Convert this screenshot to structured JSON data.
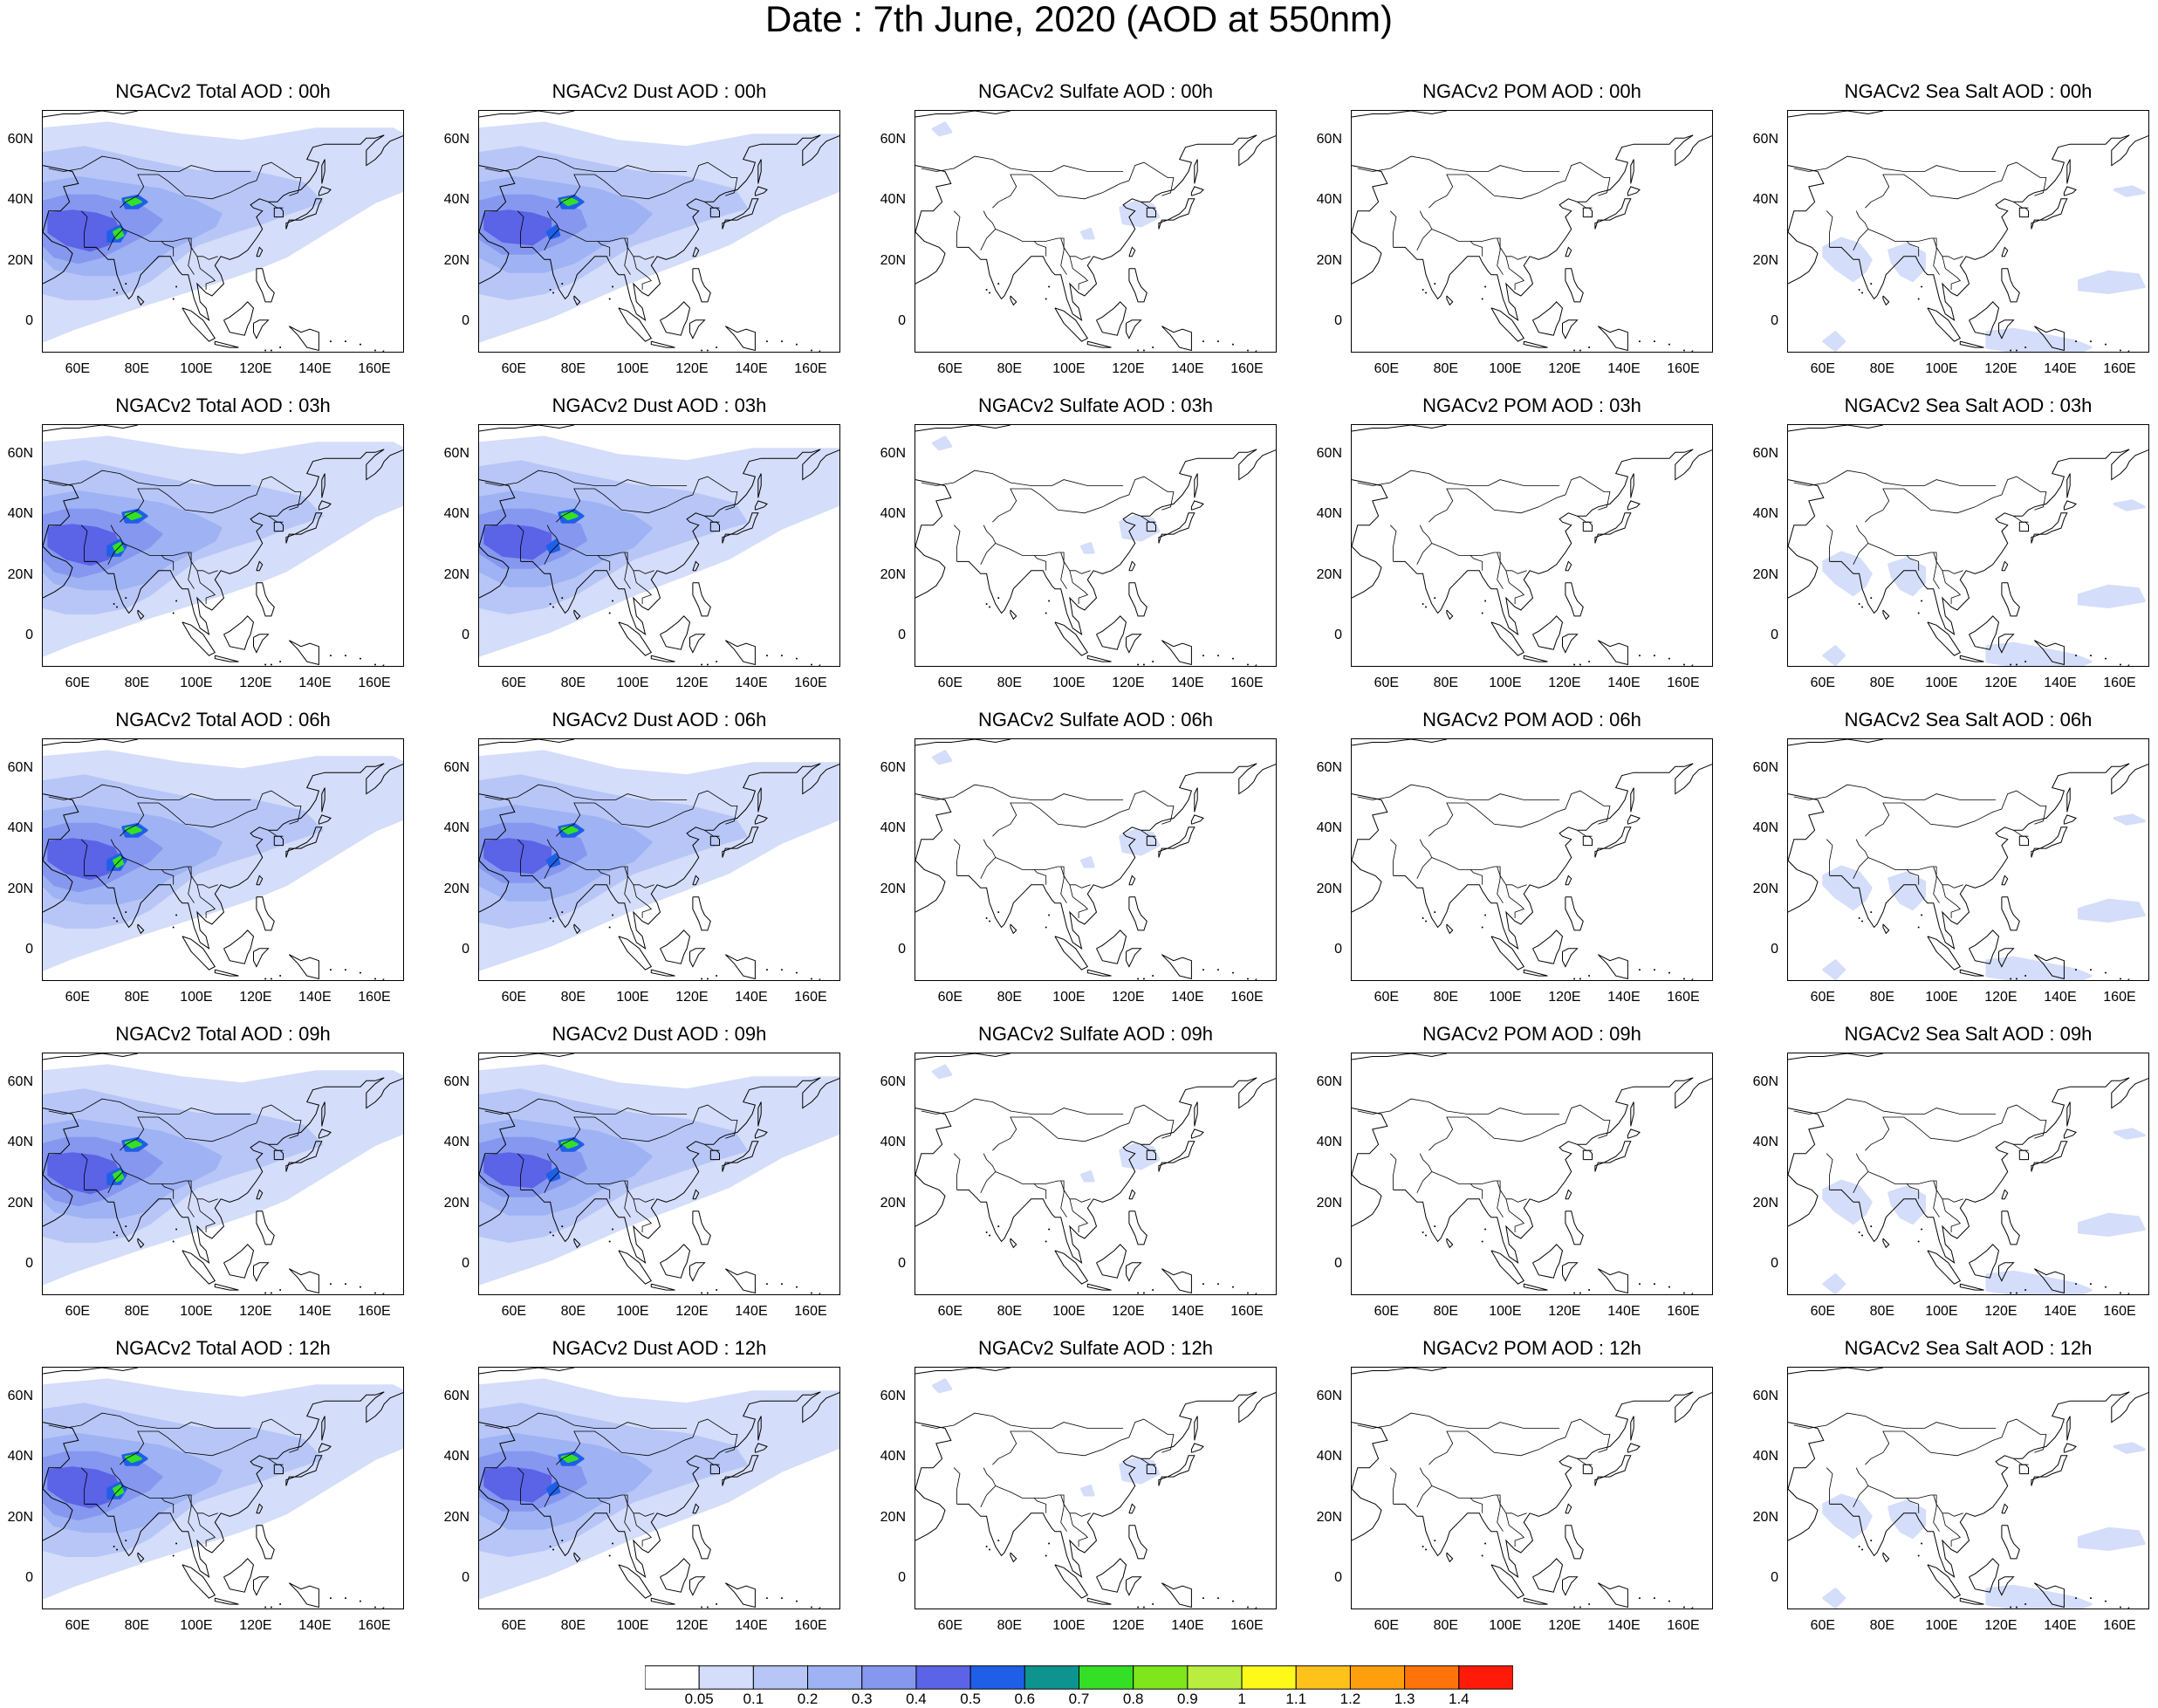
{
  "figure": {
    "title": "Date : 7th June, 2020 (AOD at 550nm)"
  },
  "axes": {
    "x_ticks": [
      "60E",
      "80E",
      "100E",
      "120E",
      "140E",
      "160E"
    ],
    "x_tick_values": [
      60,
      80,
      100,
      120,
      140,
      160
    ],
    "y_ticks": [
      "60N",
      "40N",
      "20N",
      "0"
    ],
    "y_tick_values": [
      60,
      40,
      20,
      0
    ],
    "lon_range": [
      48,
      170
    ],
    "lat_range": [
      -10,
      70
    ]
  },
  "panel_titles": [
    [
      "NGACv2 Total AOD : 00h",
      "NGACv2 Dust AOD : 00h",
      "NGACv2 Sulfate AOD : 00h",
      "NGACv2 POM AOD : 00h",
      "NGACv2 Sea Salt AOD : 00h"
    ],
    [
      "NGACv2 Total AOD : 03h",
      "NGACv2 Dust AOD : 03h",
      "NGACv2 Sulfate AOD : 03h",
      "NGACv2 POM AOD : 03h",
      "NGACv2 Sea Salt AOD : 03h"
    ],
    [
      "NGACv2 Total AOD : 06h",
      "NGACv2 Dust AOD : 06h",
      "NGACv2 Sulfate AOD : 06h",
      "NGACv2 POM AOD : 06h",
      "NGACv2 Sea Salt AOD : 06h"
    ],
    [
      "NGACv2 Total AOD : 09h",
      "NGACv2 Dust AOD : 09h",
      "NGACv2 Sulfate AOD : 09h",
      "NGACv2 POM AOD : 09h",
      "NGACv2 Sea Salt  AOD : 09h"
    ],
    [
      "NGACv2 Total AOD  : 12h",
      "NGACv2 Dust AOD : 12h",
      "NGACv2 Sulfate AOD : 12h",
      "NGACv2 POM  AOD : 12h",
      "NGACv2 Sea Salt  AOD : 12h"
    ]
  ],
  "colorbar": {
    "labels": [
      "0.05",
      "0.1",
      "0.2",
      "0.3",
      "0.4",
      "0.5",
      "0.6",
      "0.7",
      "0.8",
      "0.9",
      "1",
      "1.1",
      "1.2",
      "1.3",
      "1.4"
    ],
    "colors": [
      "#ffffff",
      "#d4ddf9",
      "#b7c6f6",
      "#9fb2f3",
      "#8597ef",
      "#5b63e6",
      "#1f5fe8",
      "#0e948f",
      "#33e026",
      "#7ee61b",
      "#b9ee3e",
      "#fff91a",
      "#ffc21a",
      "#ff9f0d",
      "#ff730a",
      "#ff1a0a"
    ]
  }
}
